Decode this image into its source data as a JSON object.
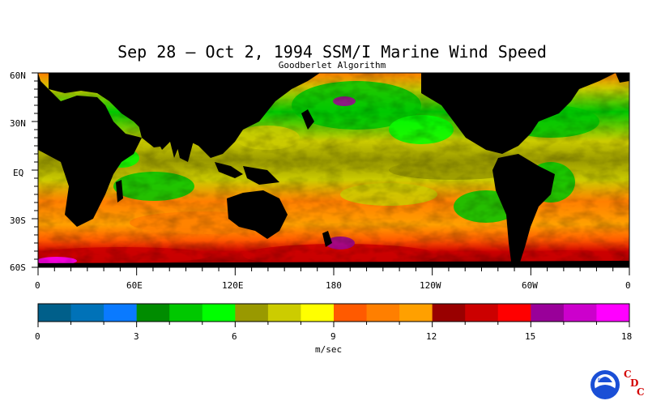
{
  "map": {
    "title": "Sep 28 – Oct 2, 1994 SSM/I Marine Wind Speed",
    "subtitle": "Goodberlet Algorithm",
    "lat_labels": [
      "60N",
      "30N",
      "EQ",
      "30S",
      "60S"
    ],
    "lon_labels": [
      "0",
      "60E",
      "120E",
      "180",
      "120W",
      "60W",
      "0"
    ],
    "land_color": "#000000",
    "no_data_color": "#000000"
  },
  "colorbar": {
    "unit": "m/sec",
    "tick_labels": [
      "0",
      "3",
      "6",
      "9",
      "12",
      "15",
      "18"
    ],
    "range": [
      0,
      18
    ],
    "colors": [
      "#005f8a",
      "#0072b8",
      "#0a7aff",
      "#008c00",
      "#00c800",
      "#00ff00",
      "#999900",
      "#cccc00",
      "#ffff00",
      "#ff5a00",
      "#ff7f00",
      "#ffa000",
      "#990000",
      "#cc0000",
      "#ff0000",
      "#990099",
      "#cc00cc",
      "#ff00ff"
    ]
  },
  "logo": {
    "noaa_text": "NOAA",
    "cdc_letters": [
      "C",
      "D",
      "C"
    ]
  }
}
